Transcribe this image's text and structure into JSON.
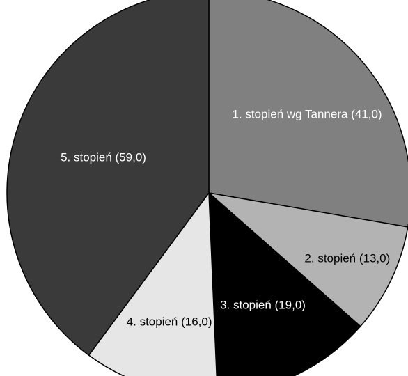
{
  "chart_data": {
    "type": "pie",
    "start_angle_deg": 0,
    "direction": "clockwise",
    "slices": [
      {
        "label": "1. stopień wg Tannera (41,0)",
        "value": 41.0,
        "color": "#808080",
        "text_color": "#ffffff"
      },
      {
        "label": "2. stopień (13,0)",
        "value": 13.0,
        "color": "#b3b3b3",
        "text_color": "#000000"
      },
      {
        "label": "3. stopień (19,0)",
        "value": 19.0,
        "color": "#000000",
        "text_color": "#ffffff"
      },
      {
        "label": "4. stopień (16,0)",
        "value": 16.0,
        "color": "#e6e6e6",
        "text_color": "#000000"
      },
      {
        "label": "5. stopień (59,0)",
        "value": 59.0,
        "color": "#3a3a3a",
        "text_color": "#ffffff"
      }
    ],
    "edge_color": "#000000"
  }
}
